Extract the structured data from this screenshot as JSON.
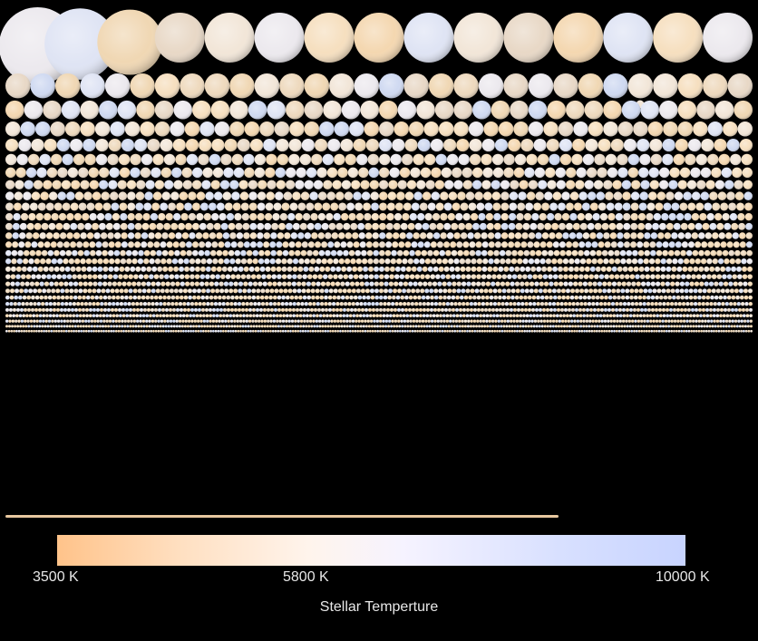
{
  "colorbar": {
    "ticks": [
      "3500 K",
      "5800 K",
      "10000 K"
    ],
    "caption": "Stellar Temperture",
    "min_temperature_k": 3500,
    "mid_temperature_k": 5800,
    "max_temperature_k": 10000,
    "colors": [
      "#ffc38a",
      "#ffe0c2",
      "#fff4ec",
      "#f6f3ff",
      "#d8e0ff",
      "#c8d4ff"
    ]
  },
  "palette": {
    "background": "#000000",
    "stars": [
      "#f6dfbf",
      "#f0d7b3",
      "#e8d8c6",
      "#f2e6d8",
      "#ece9ee",
      "#dfe4f4",
      "#cfd9f1",
      "#f4d7b0",
      "#eed9bd"
    ]
  },
  "rows": [
    {
      "count": 15,
      "size": "largest"
    },
    {
      "count": 30,
      "size": "large"
    },
    {
      "count": 40,
      "size": "large"
    },
    {
      "count": 50,
      "size": "medium"
    },
    {
      "count": 58,
      "size": "medium"
    },
    {
      "count": 66,
      "size": "medium"
    },
    {
      "count": 72,
      "size": "small"
    },
    {
      "count": 80,
      "size": "small"
    },
    {
      "count": 86,
      "size": "small"
    },
    {
      "count": 92,
      "size": "small"
    },
    {
      "count": 98,
      "size": "small"
    },
    {
      "count": 104,
      "size": "small"
    },
    {
      "count": 110,
      "size": "small"
    },
    {
      "count": 116,
      "size": "small"
    },
    {
      "count": 124,
      "size": "small"
    },
    {
      "count": 130,
      "size": "small"
    },
    {
      "count": 138,
      "size": "small"
    },
    {
      "count": 146,
      "size": "tiny"
    },
    {
      "count": 154,
      "size": "tiny"
    },
    {
      "count": 164,
      "size": "tiny"
    },
    {
      "count": 176,
      "size": "tiny"
    },
    {
      "count": 190,
      "size": "tiny"
    },
    {
      "count": 206,
      "size": "tiny"
    },
    {
      "count": 224,
      "size": "tiny"
    },
    {
      "count": 246,
      "size": "tiny"
    },
    {
      "count": 272,
      "size": "tiny"
    },
    {
      "count": 300,
      "size": "tiny"
    }
  ]
}
